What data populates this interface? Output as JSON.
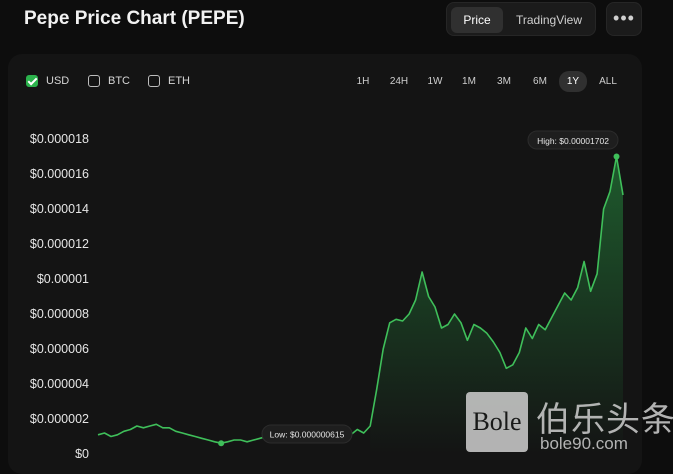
{
  "header": {
    "title": "Pepe Price Chart (PEPE)",
    "view_options": [
      {
        "label": "Price",
        "active": true
      },
      {
        "label": "TradingView",
        "active": false
      }
    ],
    "more_icon": "more-horizontal-icon"
  },
  "currencies": [
    {
      "label": "USD",
      "checked": true
    },
    {
      "label": "BTC",
      "checked": false
    },
    {
      "label": "ETH",
      "checked": false
    }
  ],
  "ranges": [
    {
      "label": "1H",
      "active": false
    },
    {
      "label": "24H",
      "active": false
    },
    {
      "label": "1W",
      "active": false
    },
    {
      "label": "1M",
      "active": false
    },
    {
      "label": "3M",
      "active": false
    },
    {
      "label": "6M",
      "active": false
    },
    {
      "label": "1Y",
      "active": true
    },
    {
      "label": "ALL",
      "active": false
    }
  ],
  "colors": {
    "accent": "#2bb24c",
    "line": "#3fbf5a",
    "background": "#0d0d0d",
    "card": "#141414"
  },
  "chart_data": {
    "type": "area",
    "y_tick_labels": [
      "$0.000018",
      "$0.000016",
      "$0.000014",
      "$0.000012",
      "$0.00001",
      "$0.000008",
      "$0.000006",
      "$0.000004",
      "$0.000002",
      "$0"
    ],
    "ylim": [
      0,
      1.8e-05
    ],
    "high_label": "High: $0.00001702",
    "low_label": "Low: $0.000000615",
    "grid": false,
    "series": [
      {
        "values": [
          1.1e-06,
          1.2e-06,
          1e-06,
          1.1e-06,
          1.3e-06,
          1.4e-06,
          1.6e-06,
          1.5e-06,
          1.6e-06,
          1.7e-06,
          1.5e-06,
          1.5e-06,
          1.3e-06,
          1.2e-06,
          1.1e-06,
          1e-06,
          9e-07,
          8e-07,
          7e-07,
          6.15e-07,
          7e-07,
          8e-07,
          8e-07,
          7e-07,
          8e-07,
          9e-07,
          1e-06,
          9e-07,
          9e-07,
          8e-07,
          1.3e-06,
          1.4e-06,
          1.2e-06,
          1.3e-06,
          1.1e-06,
          1.2e-06,
          1.1e-06,
          1.2e-06,
          1e-06,
          1.1e-06,
          1.4e-06,
          1.2e-06,
          1.6e-06,
          3.7e-06,
          6e-06,
          7.5e-06,
          7.7e-06,
          7.6e-06,
          8e-06,
          8.8e-06,
          1.04e-05,
          9e-06,
          8.4e-06,
          7.2e-06,
          7.4e-06,
          8e-06,
          7.5e-06,
          6.5e-06,
          7.4e-06,
          7.2e-06,
          6.9e-06,
          6.4e-06,
          5.8e-06,
          4.9e-06,
          5.1e-06,
          5.8e-06,
          7.2e-06,
          6.6e-06,
          7.4e-06,
          7.1e-06,
          7.8e-06,
          8.5e-06,
          9.2e-06,
          8.8e-06,
          9.5e-06,
          1.1e-05,
          9.3e-06,
          1.03e-05,
          1.4e-05,
          1.5e-05,
          1.7e-05,
          1.48e-05
        ]
      }
    ]
  },
  "watermark": {
    "logo_text": "Bole",
    "cn_text": "伯乐头条",
    "url_text": "bole90.com"
  }
}
